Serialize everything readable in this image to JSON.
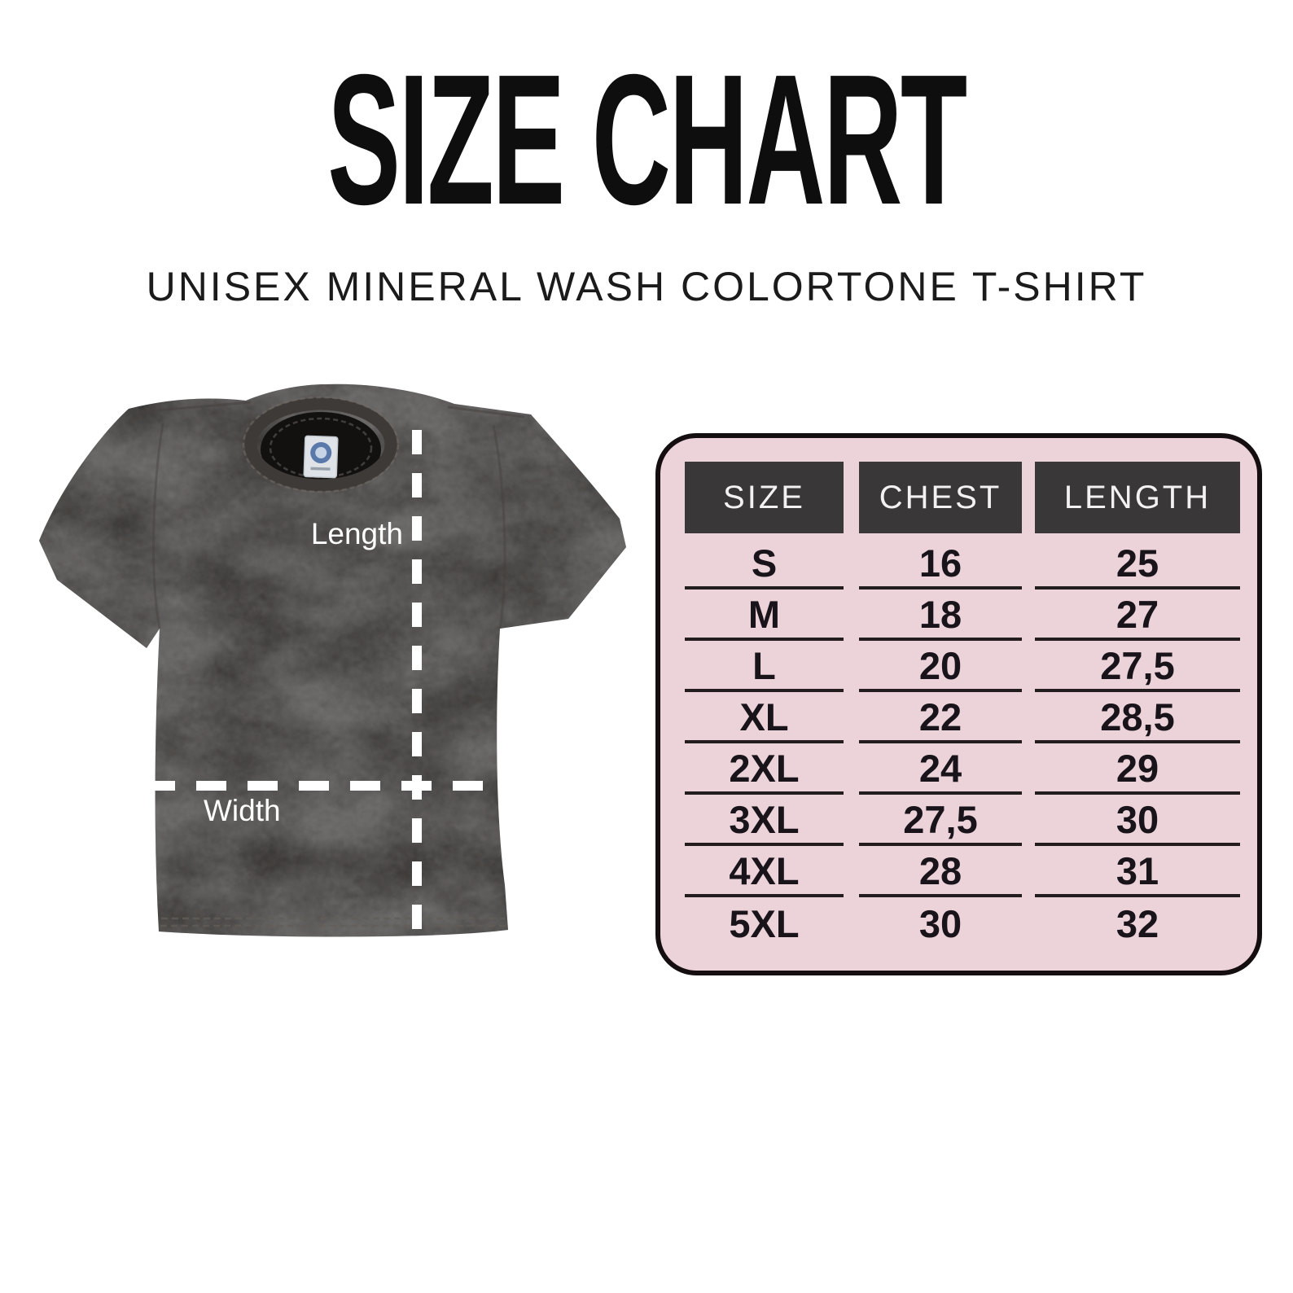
{
  "title": "SIZE CHART",
  "subtitle": "UNISEX MINERAL WASH COLORTONE T-SHIRT",
  "diagram": {
    "length_label": "Length",
    "width_label": "Width",
    "garment": "dark mineral-wash t-shirt photo with white dashed measurement lines"
  },
  "chart_data": {
    "type": "table",
    "title": "SIZE CHART",
    "subtitle": "UNISEX MINERAL WASH COLORTONE T-SHIRT",
    "columns": [
      "SIZE",
      "CHEST",
      "LENGTH"
    ],
    "rows": [
      [
        "S",
        "16",
        "25"
      ],
      [
        "M",
        "18",
        "27"
      ],
      [
        "L",
        "20",
        "27,5"
      ],
      [
        "XL",
        "22",
        "28,5"
      ],
      [
        "2XL",
        "24",
        "29"
      ],
      [
        "3XL",
        "27,5",
        "30"
      ],
      [
        "4XL",
        "28",
        "31"
      ],
      [
        "5XL",
        "30",
        "32"
      ]
    ]
  },
  "colors": {
    "table_bg": "#ecd2d9",
    "table_border": "#150e10",
    "header_bg": "#3a3738",
    "header_text": "#f3f1f2",
    "row_text": "#18141a",
    "row_line": "#241d1f",
    "title_color": "#0e0e0e",
    "subtitle_color": "#1b1b1b",
    "shirt_base": "#2b2826",
    "dash": "#ffffff"
  }
}
